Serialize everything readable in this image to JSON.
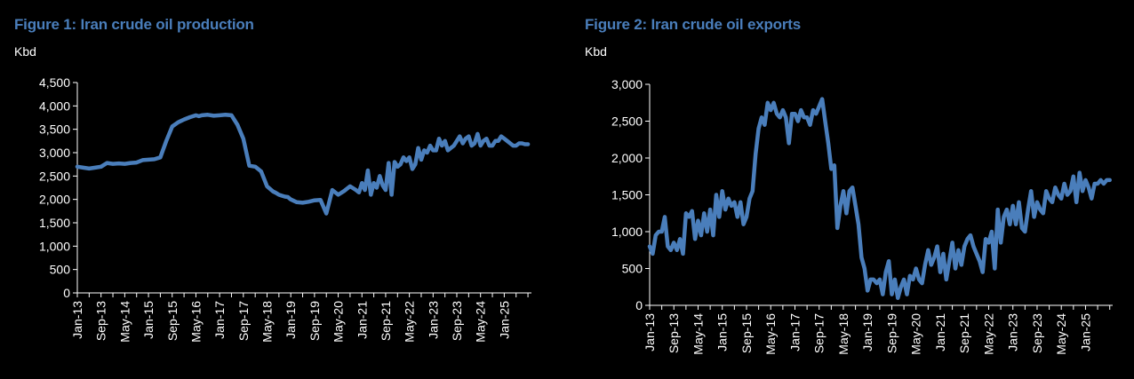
{
  "chart_data": [
    {
      "type": "line",
      "title": "Figure 1: Iran crude oil production",
      "ylabel": "Kbd",
      "ylim": [
        0,
        4500
      ],
      "yticks": [
        "0",
        "500",
        "1,000",
        "1,500",
        "2,000",
        "2,500",
        "3,000",
        "3,500",
        "4,000",
        "4,500"
      ],
      "xticks": [
        "Jan-13",
        "Sep-13",
        "May-14",
        "Jan-15",
        "Sep-15",
        "May-16",
        "Jan-17",
        "Sep-17",
        "May-18",
        "Jan-19",
        "Sep-19",
        "May-20",
        "Jan-21",
        "Sep-21",
        "May-22",
        "Jan-23",
        "Sep-23",
        "May-24",
        "Jan-25"
      ],
      "grid": false,
      "line_color": "#4a7ebb",
      "series": [
        {
          "x": [
            0,
            2,
            4,
            6,
            8,
            10,
            12,
            14,
            16,
            18,
            20,
            22,
            24,
            26,
            28,
            30,
            32,
            34,
            35,
            36,
            38,
            40,
            41,
            42,
            44,
            46,
            48,
            50,
            52,
            54,
            56,
            58,
            60,
            62,
            64,
            66,
            67,
            68,
            69,
            70,
            71,
            72,
            74,
            76,
            78,
            80,
            82,
            84,
            86,
            88,
            90,
            92,
            94,
            95,
            96,
            97,
            98,
            99,
            100,
            101,
            102,
            103,
            104,
            105,
            106,
            107,
            108,
            109,
            110,
            111,
            112,
            113,
            114,
            115,
            116,
            117,
            118,
            119,
            120,
            121,
            122,
            123,
            124,
            125,
            126,
            127,
            128,
            129,
            130,
            131,
            132,
            133,
            134,
            135,
            136,
            137,
            138,
            139,
            140,
            141,
            142,
            143,
            144,
            145,
            146,
            147,
            148,
            149,
            150,
            151,
            152
          ],
          "values": [
            2700,
            2680,
            2660,
            2680,
            2700,
            2780,
            2760,
            2770,
            2760,
            2780,
            2790,
            2840,
            2850,
            2860,
            2900,
            3250,
            3560,
            3650,
            3680,
            3710,
            3760,
            3800,
            3780,
            3800,
            3810,
            3790,
            3800,
            3810,
            3800,
            3600,
            3300,
            2720,
            2700,
            2600,
            2280,
            2170,
            2140,
            2100,
            2080,
            2060,
            2050,
            2000,
            1940,
            1930,
            1950,
            1980,
            1990,
            1700,
            2200,
            2100,
            2180,
            2280,
            2200,
            2150,
            2350,
            2200,
            2620,
            2100,
            2350,
            2250,
            2500,
            2300,
            2200,
            2780,
            2100,
            2800,
            2700,
            2750,
            2900,
            2820,
            2900,
            2650,
            2750,
            3100,
            2850,
            3050,
            3000,
            3150,
            3050,
            3050,
            3300,
            3150,
            3250,
            3050,
            3100,
            3150,
            3250,
            3350,
            3200,
            3300,
            3350,
            3150,
            3200,
            3400,
            3150,
            3250,
            3300,
            3150,
            3150,
            3250,
            3250,
            3350,
            3300,
            3250,
            3200,
            3150,
            3150,
            3200,
            3200,
            3180,
            3180
          ]
        }
      ]
    },
    {
      "type": "line",
      "title": "Figure 2: Iran crude oil exports",
      "ylabel": "Kbd",
      "ylim": [
        0,
        3000
      ],
      "yticks": [
        "0",
        "500",
        "1,000",
        "1,500",
        "2,000",
        "2,500",
        "3,000"
      ],
      "xticks": [
        "Jan-13",
        "Sep-13",
        "May-14",
        "Jan-15",
        "Sep-15",
        "May-16",
        "Jan-17",
        "Sep-17",
        "May-18",
        "Jan-19",
        "Sep-19",
        "May-20",
        "Jan-21",
        "Sep-21",
        "May-22",
        "Jan-23",
        "Sep-23",
        "May-24",
        "Jan-25"
      ],
      "grid": false,
      "line_color": "#4a7ebb",
      "series": [
        {
          "x": [
            0,
            1,
            2,
            3,
            4,
            5,
            6,
            7,
            8,
            9,
            10,
            11,
            12,
            13,
            14,
            15,
            16,
            17,
            18,
            19,
            20,
            21,
            22,
            23,
            24,
            25,
            26,
            27,
            28,
            29,
            30,
            31,
            32,
            33,
            34,
            35,
            36,
            37,
            38,
            39,
            40,
            41,
            42,
            43,
            44,
            45,
            46,
            47,
            48,
            49,
            50,
            51,
            52,
            53,
            54,
            55,
            56,
            57,
            58,
            59,
            60,
            61,
            62,
            63,
            64,
            65,
            66,
            67,
            68,
            69,
            70,
            71,
            72,
            73,
            74,
            75,
            76,
            77,
            78,
            79,
            80,
            81,
            82,
            83,
            84,
            85,
            86,
            87,
            88,
            89,
            90,
            91,
            92,
            93,
            94,
            95,
            96,
            97,
            98,
            99,
            100,
            101,
            102,
            103,
            104,
            105,
            106,
            107,
            108,
            109,
            110,
            111,
            112,
            113,
            114,
            115,
            116,
            117,
            118,
            119,
            120,
            121,
            122,
            123,
            124,
            125,
            126,
            127,
            128,
            129,
            130,
            131,
            132,
            133,
            134,
            135,
            136,
            137,
            138,
            139,
            140,
            141,
            142,
            143,
            144,
            145,
            146,
            147,
            148,
            149,
            150,
            151,
            152
          ],
          "values": [
            800,
            700,
            950,
            1000,
            1000,
            1200,
            800,
            750,
            850,
            750,
            900,
            700,
            1250,
            1200,
            1280,
            900,
            1150,
            950,
            1250,
            1000,
            1300,
            950,
            1500,
            1200,
            1550,
            1300,
            1450,
            1350,
            1400,
            1200,
            1400,
            1100,
            1200,
            1450,
            1550,
            2050,
            2400,
            2550,
            2450,
            2750,
            2650,
            2750,
            2600,
            2550,
            2650,
            2550,
            2200,
            2600,
            2600,
            2500,
            2650,
            2550,
            2550,
            2450,
            2650,
            2600,
            2700,
            2800,
            2500,
            2200,
            1850,
            1900,
            1050,
            1350,
            1550,
            1250,
            1550,
            1600,
            1350,
            1100,
            650,
            500,
            200,
            350,
            350,
            300,
            350,
            150,
            450,
            600,
            150,
            350,
            100,
            250,
            350,
            150,
            400,
            350,
            500,
            350,
            300,
            550,
            750,
            550,
            650,
            800,
            450,
            700,
            350,
            600,
            850,
            500,
            750,
            550,
            800,
            900,
            950,
            800,
            700,
            600,
            450,
            900,
            850,
            1000,
            500,
            1300,
            850,
            1200,
            1300,
            1100,
            1350,
            1100,
            1400,
            1050,
            1000,
            1300,
            1550,
            1200,
            1400,
            1300,
            1250,
            1550,
            1450,
            1400,
            1600,
            1500,
            1450,
            1650,
            1500,
            1550,
            1750,
            1400,
            1800,
            1550,
            1700,
            1600,
            1450,
            1650,
            1650,
            1700,
            1650,
            1700,
            1700
          ]
        }
      ]
    }
  ]
}
